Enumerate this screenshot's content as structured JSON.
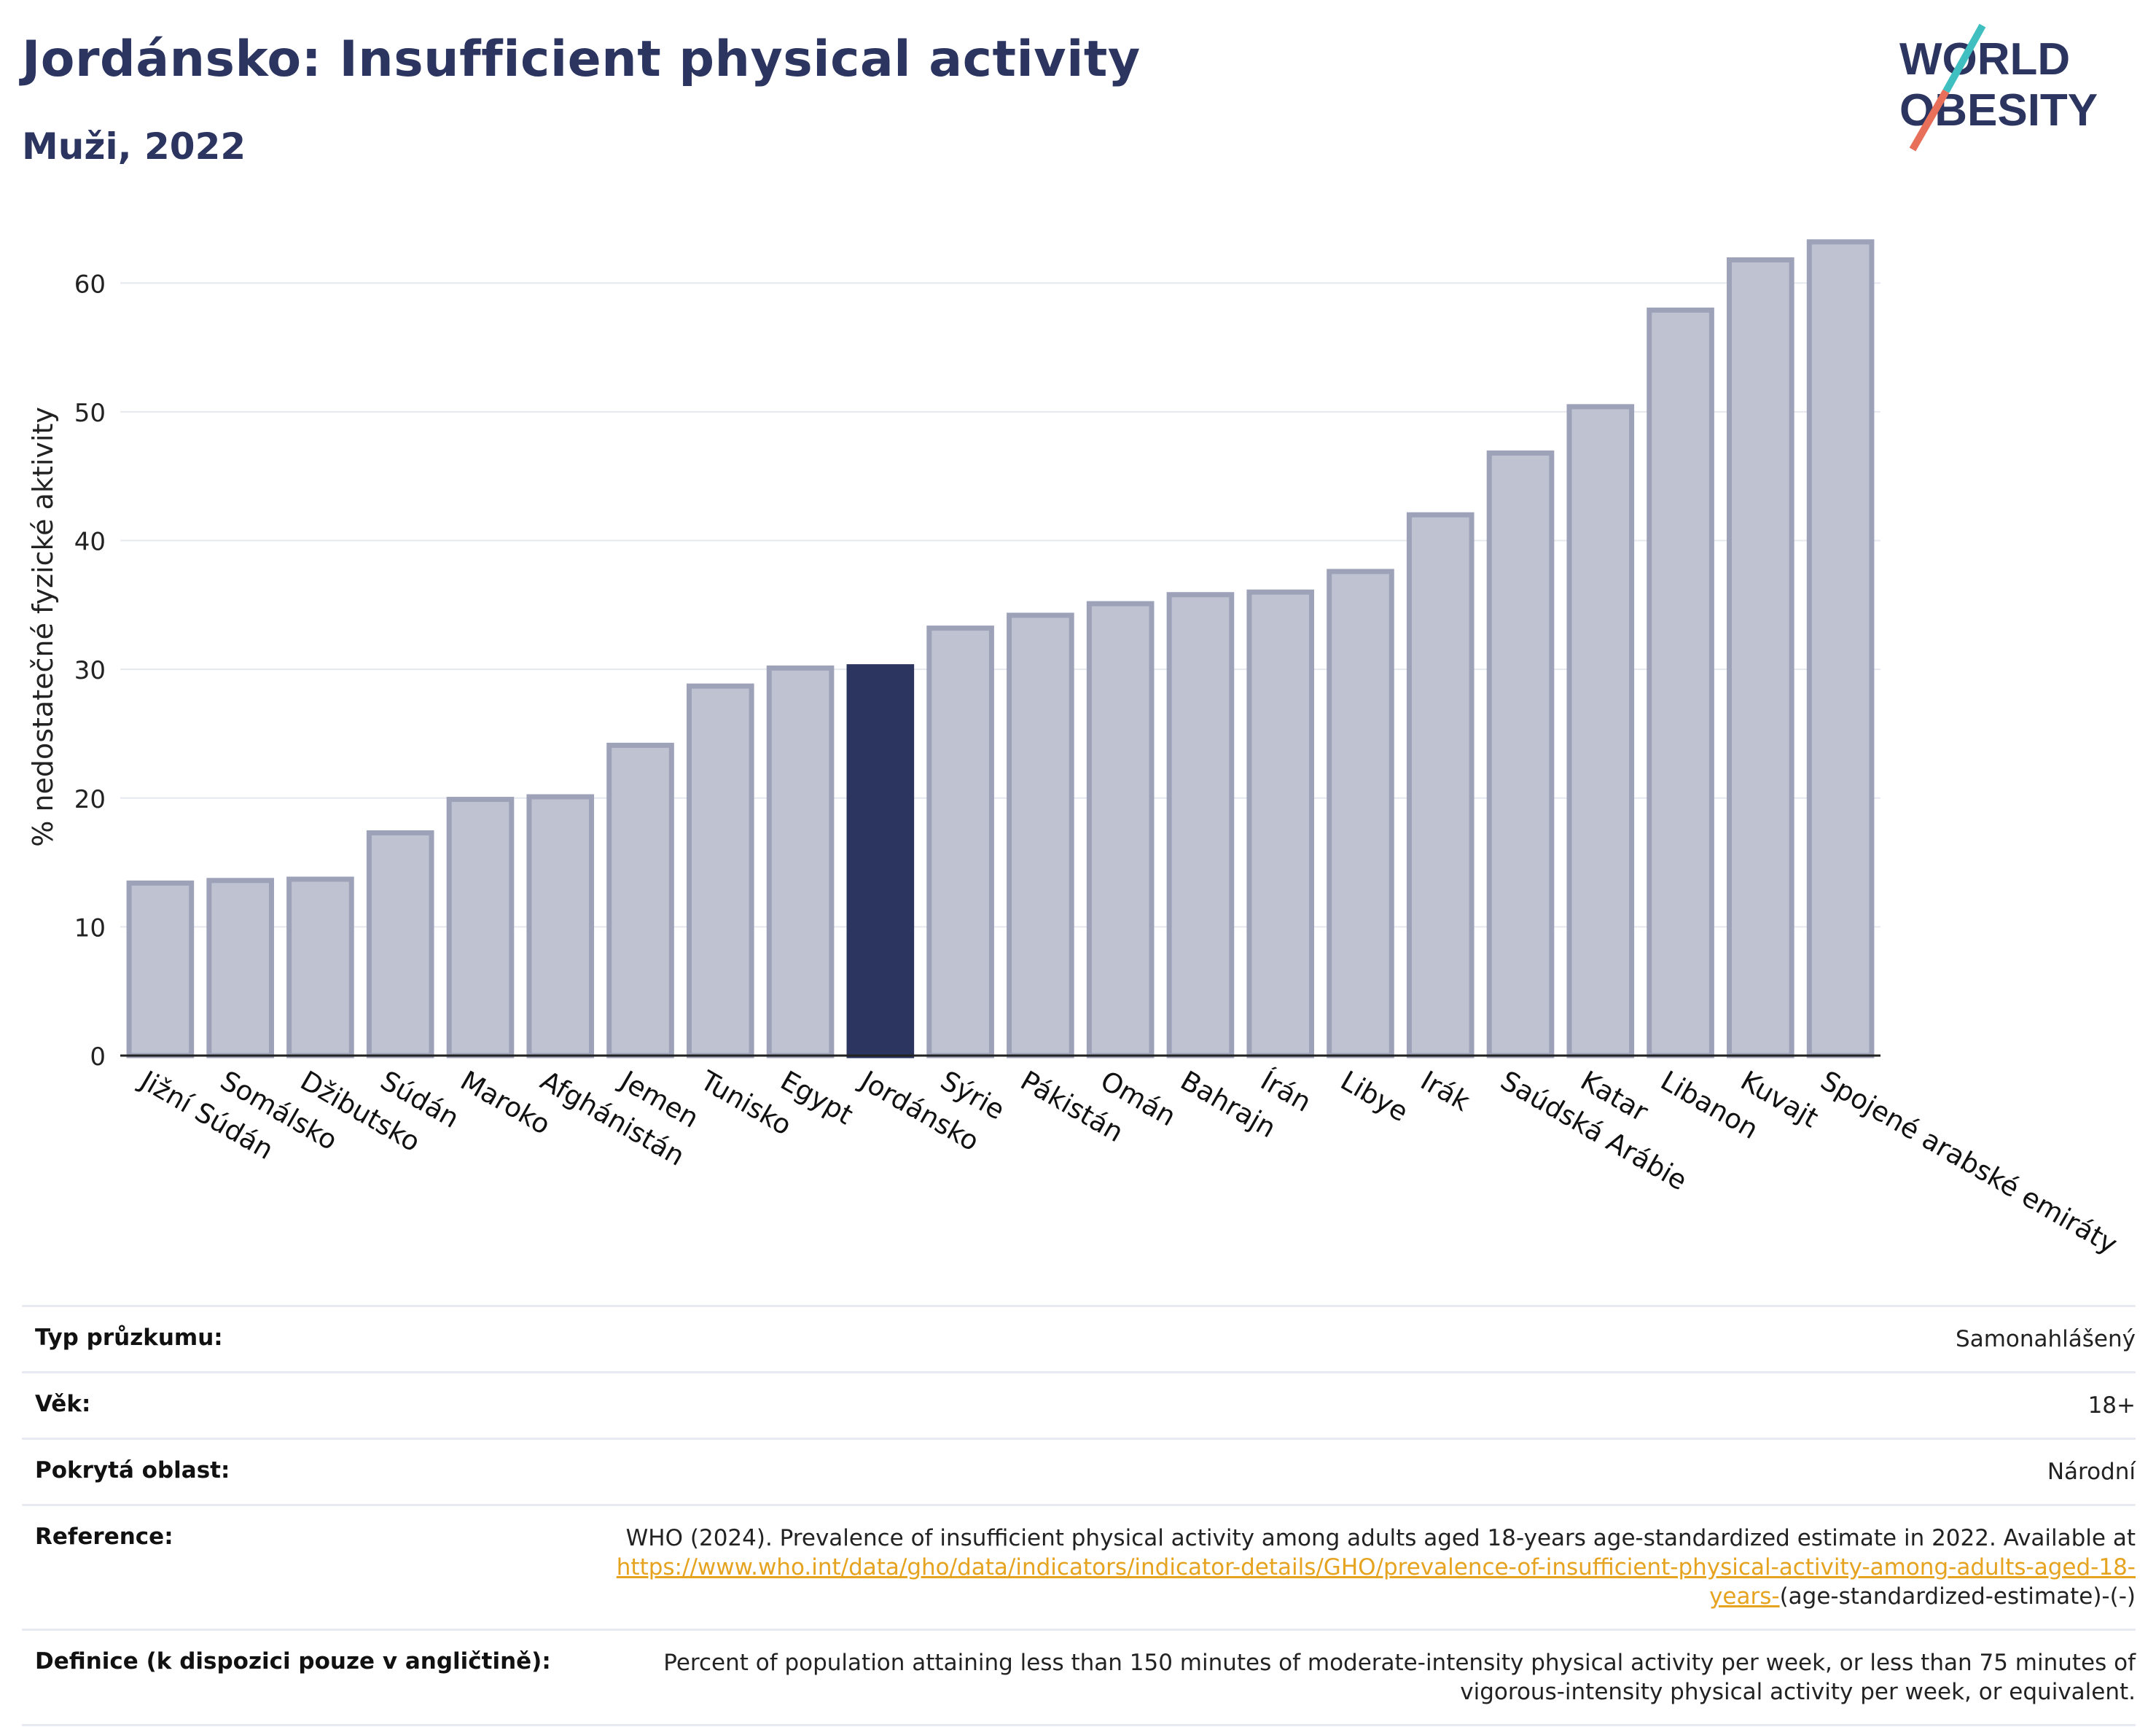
{
  "header": {
    "title": "Jordánsko: Insufficient physical activity",
    "subtitle": "Muži, 2022"
  },
  "logo": {
    "line1": "WORLD",
    "line2": "OBESITY"
  },
  "colors": {
    "highlight": "#2b3560",
    "bar_fill": "#bfc2d0",
    "bar_stroke": "#9da2b9",
    "title": "#2b3560",
    "link": "#e5a31f"
  },
  "chart_data": {
    "type": "bar",
    "title": "Jordánsko: Insufficient physical activity",
    "subtitle": "Muži, 2022",
    "xlabel": "",
    "ylabel": "% nedostatečné fyzické aktivity",
    "ylim": [
      0,
      65
    ],
    "yticks": [
      0,
      10,
      20,
      30,
      40,
      50,
      60
    ],
    "grid": true,
    "highlight_category": "Jordánsko",
    "categories": [
      "Jižní Súdán",
      "Somálsko",
      "Džibutsko",
      "Súdán",
      "Maroko",
      "Afghánistán",
      "Jemen",
      "Tunisko",
      "Egypt",
      "Jordánsko",
      "Sýrie",
      "Pákistán",
      "Omán",
      "Bahrajn",
      "Írán",
      "Libye",
      "Irák",
      "Saúdská Arábie",
      "Katar",
      "Libanon",
      "Kuvajt",
      "Spojené arabské emiráty"
    ],
    "values": [
      13.4,
      13.6,
      13.7,
      17.3,
      19.9,
      20.1,
      24.1,
      28.7,
      30.1,
      30.2,
      33.2,
      34.2,
      35.1,
      35.8,
      36.0,
      37.6,
      42.0,
      46.8,
      50.4,
      57.9,
      61.8,
      63.2
    ]
  },
  "metadata": {
    "survey_type": {
      "label": "Typ průzkumu:",
      "value": "Samonahlášený"
    },
    "age": {
      "label": "Věk:",
      "value": "18+"
    },
    "coverage": {
      "label": "Pokrytá oblast:",
      "value": "Národní"
    },
    "reference": {
      "label": "Reference:",
      "text_before": "WHO (2024). Prevalence of insufficient physical activity among adults aged 18-years age-standardized estimate in 2022. Available at ",
      "link_text": "https://www.who.int/data/gho/data/indicators/indicator-details/GHO/prevalence-of-insufficient-physical-activity-among-adults-aged-18-years-",
      "text_after": "(age-standardized-estimate)-(-)"
    },
    "definition": {
      "label": "Definice (k dispozici pouze v angličtině):",
      "value": "Percent of population attaining less than 150 minutes of moderate-intensity physical activity per week, or less than 75 minutes of vigorous-intensity physical activity per week, or equivalent."
    }
  }
}
